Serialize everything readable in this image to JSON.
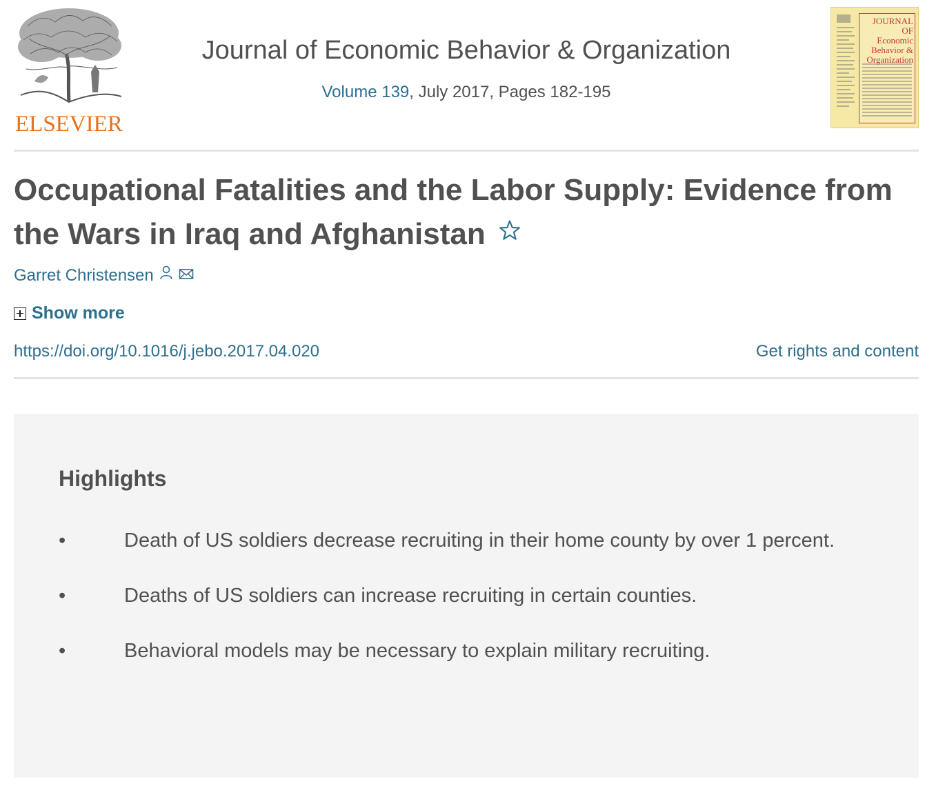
{
  "publisher": {
    "name": "ELSEVIER"
  },
  "journal": {
    "title": "Journal of Economic Behavior & Organization",
    "volume_link": "Volume 139",
    "issue_details": ", July 2017, Pages 182-195",
    "cover_title": "JOURNAL OF\nEconomic\nBehavior &\nOrganization"
  },
  "article": {
    "title": "Occupational Fatalities and the Labor Supply: Evidence from the Wars in Iraq and Afghanistan",
    "author": "Garret Christensen",
    "show_more_label": "Show more",
    "doi": "https://doi.org/10.1016/j.jebo.2017.04.020",
    "rights_link": "Get rights and content"
  },
  "highlights": {
    "heading": "Highlights",
    "bullet": "•",
    "items": [
      "Death of US soldiers decrease recruiting in their home county by over 1 percent.",
      "Deaths of US soldiers can increase recruiting in certain counties.",
      "Behavioral models may be necessary to explain military recruiting."
    ]
  },
  "colors": {
    "text": "#505050",
    "link": "#2e6f8e",
    "brand_orange": "#e9711c",
    "panel_bg": "#f4f4f4",
    "cover_bg": "#f6e8a5",
    "cover_red": "#c23b3b"
  },
  "icons": [
    "elsevier-tree-logo",
    "star-icon",
    "person-icon",
    "envelope-icon",
    "plus-box-icon"
  ]
}
